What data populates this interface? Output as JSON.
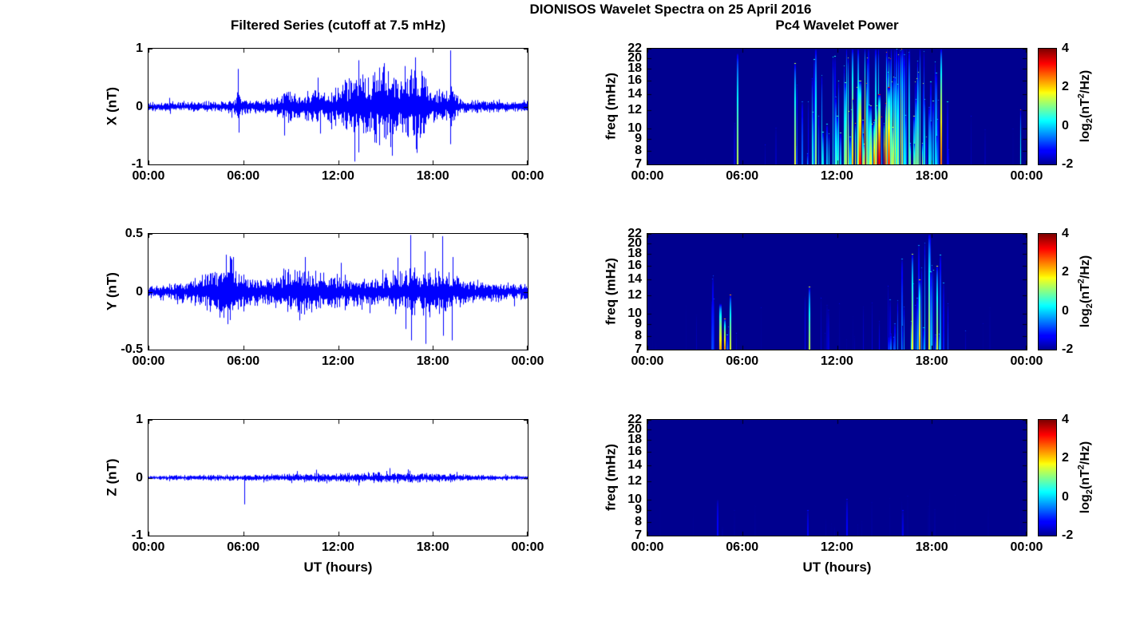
{
  "title": "DIONISOS Wavelet Spectra on 25 April 2016",
  "left_title": "Filtered Series (cutoff at 7.5 mHz)",
  "right_title": "Pc4 Wavelet Power",
  "xlabel": "UT (hours)",
  "x_ticks": [
    "00:00",
    "06:00",
    "12:00",
    "18:00",
    "00:00"
  ],
  "colors": {
    "line": "#0000ff",
    "background": "#ffffff",
    "spec_background": "#00008f"
  },
  "colorbar": {
    "label": {
      "pre": "log",
      "sub": "2",
      "mid": "(nT",
      "sup": "2",
      "post": "/Hz)"
    },
    "clim": [
      -2,
      4
    ],
    "tick_labels": [
      "4",
      "2",
      "0",
      "-2"
    ],
    "tick_values": [
      4,
      2,
      0,
      -2
    ]
  },
  "chart_data": [
    {
      "id": "series-x",
      "type": "line",
      "ylabel": "X (nT)",
      "xlabel": "UT (hours)",
      "x_range_hours": [
        0,
        24
      ],
      "ylim": [
        -1,
        1
      ],
      "ytick_labels": [
        "1",
        "0",
        "-1"
      ],
      "ytick_values": [
        1,
        0,
        -1
      ],
      "seed": 11,
      "envelope": [
        [
          0,
          0.06
        ],
        [
          1,
          0.055
        ],
        [
          2,
          0.06
        ],
        [
          3,
          0.06
        ],
        [
          4,
          0.065
        ],
        [
          5,
          0.07
        ],
        [
          5.5,
          0.12
        ],
        [
          5.7,
          0.28
        ],
        [
          5.9,
          0.12
        ],
        [
          6.5,
          0.08
        ],
        [
          7.5,
          0.09
        ],
        [
          8,
          0.12
        ],
        [
          8.6,
          0.22
        ],
        [
          9,
          0.16
        ],
        [
          9.5,
          0.14
        ],
        [
          10,
          0.18
        ],
        [
          10.5,
          0.22
        ],
        [
          11,
          0.18
        ],
        [
          11.5,
          0.2
        ],
        [
          12,
          0.22
        ],
        [
          12.5,
          0.3
        ],
        [
          13,
          0.42
        ],
        [
          13.3,
          0.5
        ],
        [
          13.6,
          0.35
        ],
        [
          14,
          0.33
        ],
        [
          14.5,
          0.42
        ],
        [
          15,
          0.45
        ],
        [
          15.5,
          0.4
        ],
        [
          16,
          0.35
        ],
        [
          16.5,
          0.42
        ],
        [
          17,
          0.38
        ],
        [
          17.3,
          0.45
        ],
        [
          17.6,
          0.3
        ],
        [
          18,
          0.22
        ],
        [
          18.5,
          0.2
        ],
        [
          19,
          0.18
        ],
        [
          19.2,
          0.3
        ],
        [
          19.5,
          0.12
        ],
        [
          20,
          0.09
        ],
        [
          21,
          0.07
        ],
        [
          22,
          0.08
        ],
        [
          23,
          0.06
        ],
        [
          24,
          0.06
        ]
      ],
      "spikes": [
        {
          "t": 5.68,
          "amp": 0.65
        },
        {
          "t": 5.72,
          "amp": -0.45
        },
        {
          "t": 8.6,
          "amp": -0.5
        },
        {
          "t": 10.7,
          "amp": 0.5
        },
        {
          "t": 13.05,
          "amp": -0.95
        },
        {
          "t": 13.3,
          "amp": 0.8
        },
        {
          "t": 14.9,
          "amp": 0.75
        },
        {
          "t": 15.3,
          "amp": -0.7
        },
        {
          "t": 16.2,
          "amp": 0.7
        },
        {
          "t": 16.9,
          "amp": 0.85
        },
        {
          "t": 17.0,
          "amp": -0.8
        },
        {
          "t": 19.1,
          "amp": 0.97
        },
        {
          "t": 19.12,
          "amp": -0.65
        }
      ]
    },
    {
      "id": "series-y",
      "type": "line",
      "ylabel": "Y (nT)",
      "xlabel": "UT (hours)",
      "x_range_hours": [
        0,
        24
      ],
      "ylim": [
        -0.5,
        0.5
      ],
      "ytick_labels": [
        "0.5",
        "0",
        "-0.5"
      ],
      "ytick_values": [
        0.5,
        0,
        -0.5
      ],
      "seed": 12,
      "envelope": [
        [
          0,
          0.045
        ],
        [
          1,
          0.05
        ],
        [
          2,
          0.06
        ],
        [
          3,
          0.08
        ],
        [
          3.5,
          0.1
        ],
        [
          4,
          0.13
        ],
        [
          4.5,
          0.16
        ],
        [
          5,
          0.17
        ],
        [
          5.3,
          0.2
        ],
        [
          5.6,
          0.15
        ],
        [
          6,
          0.12
        ],
        [
          6.5,
          0.09
        ],
        [
          7,
          0.08
        ],
        [
          7.5,
          0.09
        ],
        [
          8,
          0.11
        ],
        [
          8.5,
          0.12
        ],
        [
          9,
          0.13
        ],
        [
          9.5,
          0.14
        ],
        [
          10,
          0.13
        ],
        [
          10.5,
          0.12
        ],
        [
          11,
          0.11
        ],
        [
          11.5,
          0.1
        ],
        [
          12,
          0.11
        ],
        [
          12.5,
          0.09
        ],
        [
          13,
          0.08
        ],
        [
          13.5,
          0.08
        ],
        [
          14,
          0.09
        ],
        [
          14.5,
          0.09
        ],
        [
          15,
          0.1
        ],
        [
          15.5,
          0.11
        ],
        [
          16,
          0.12
        ],
        [
          16.5,
          0.14
        ],
        [
          17,
          0.13
        ],
        [
          17.5,
          0.14
        ],
        [
          18,
          0.13
        ],
        [
          18.5,
          0.14
        ],
        [
          19,
          0.12
        ],
        [
          19.5,
          0.11
        ],
        [
          20,
          0.08
        ],
        [
          20.5,
          0.07
        ],
        [
          21,
          0.06
        ],
        [
          22,
          0.06
        ],
        [
          23,
          0.05
        ],
        [
          24,
          0.05
        ]
      ],
      "spikes": [
        {
          "t": 4.9,
          "amp": 0.32
        },
        {
          "t": 5.0,
          "amp": -0.28
        },
        {
          "t": 5.35,
          "amp": 0.3
        },
        {
          "t": 9.9,
          "amp": 0.3
        },
        {
          "t": 12.2,
          "amp": 0.25
        },
        {
          "t": 16.55,
          "amp": 0.49
        },
        {
          "t": 16.6,
          "amp": -0.42
        },
        {
          "t": 17.5,
          "amp": 0.35
        },
        {
          "t": 17.55,
          "amp": -0.45
        },
        {
          "t": 18.6,
          "amp": 0.48
        },
        {
          "t": 18.65,
          "amp": -0.38
        },
        {
          "t": 19.2,
          "amp": -0.42
        },
        {
          "t": 19.25,
          "amp": 0.3
        }
      ]
    },
    {
      "id": "series-z",
      "type": "line",
      "ylabel": "Z (nT)",
      "xlabel": "UT (hours)",
      "x_range_hours": [
        0,
        24
      ],
      "ylim": [
        -1,
        1
      ],
      "ytick_labels": [
        "1",
        "0",
        "-1"
      ],
      "ytick_values": [
        1,
        0,
        -1
      ],
      "seed": 13,
      "envelope": [
        [
          0,
          0.025
        ],
        [
          2,
          0.03
        ],
        [
          4,
          0.035
        ],
        [
          6,
          0.035
        ],
        [
          8,
          0.04
        ],
        [
          10,
          0.05
        ],
        [
          12,
          0.055
        ],
        [
          14,
          0.06
        ],
        [
          15,
          0.065
        ],
        [
          16,
          0.06
        ],
        [
          17,
          0.055
        ],
        [
          18,
          0.05
        ],
        [
          19,
          0.05
        ],
        [
          20,
          0.04
        ],
        [
          21,
          0.035
        ],
        [
          22,
          0.03
        ],
        [
          23,
          0.03
        ],
        [
          24,
          0.025
        ]
      ],
      "spikes": [
        {
          "t": 6.05,
          "amp": -0.46
        },
        {
          "t": 16.5,
          "amp": 0.12
        },
        {
          "t": 19.5,
          "amp": 0.1
        }
      ]
    },
    {
      "id": "spec-x",
      "type": "heatmap",
      "ylabel": "freq (mHz)",
      "xlabel": "UT (hours)",
      "x_range_hours": [
        0,
        24
      ],
      "flim": [
        7,
        22
      ],
      "ytick_labels": [
        "22",
        "20",
        "18",
        "16",
        "14",
        "12",
        "10",
        "9",
        "8",
        "7"
      ],
      "ytick_values": [
        22,
        20,
        18,
        16,
        14,
        12,
        10,
        9,
        8,
        7
      ],
      "clim": [
        -2,
        4
      ],
      "max_power": 3.4,
      "seed": 21,
      "activity": [
        [
          0,
          0.01
        ],
        [
          2,
          0.01
        ],
        [
          3,
          0.02
        ],
        [
          4,
          0.03
        ],
        [
          5,
          0.04
        ],
        [
          5.5,
          0.2
        ],
        [
          5.7,
          0.35
        ],
        [
          5.9,
          0.1
        ],
        [
          6.5,
          0.04
        ],
        [
          7,
          0.05
        ],
        [
          7.5,
          0.06
        ],
        [
          8,
          0.1
        ],
        [
          8.5,
          0.2
        ],
        [
          9,
          0.25
        ],
        [
          9.5,
          0.3
        ],
        [
          10,
          0.4
        ],
        [
          10.5,
          0.5
        ],
        [
          11,
          0.45
        ],
        [
          11.5,
          0.5
        ],
        [
          12,
          0.55
        ],
        [
          12.5,
          0.65
        ],
        [
          13,
          0.8
        ],
        [
          13.5,
          0.9
        ],
        [
          14,
          0.92
        ],
        [
          14.5,
          0.95
        ],
        [
          15,
          0.95
        ],
        [
          15.5,
          0.9
        ],
        [
          16,
          0.8
        ],
        [
          16.5,
          0.75
        ],
        [
          17,
          0.7
        ],
        [
          17.5,
          0.6
        ],
        [
          18,
          0.5
        ],
        [
          18.5,
          0.45
        ],
        [
          19,
          0.25
        ],
        [
          19.5,
          0.12
        ],
        [
          20,
          0.06
        ],
        [
          20.5,
          0.05
        ],
        [
          21,
          0.06
        ],
        [
          21.5,
          0.08
        ],
        [
          22,
          0.07
        ],
        [
          22.5,
          0.05
        ],
        [
          23,
          0.03
        ],
        [
          24,
          0.01
        ]
      ],
      "events": [
        {
          "t": 5.65,
          "ftop": 21,
          "power": 1.4,
          "width": 2
        },
        {
          "t": 9.3,
          "ftop": 19,
          "power": 1.6,
          "width": 2
        },
        {
          "t": 10.6,
          "ftop": 22,
          "power": 1.2,
          "width": 2
        },
        {
          "t": 13.4,
          "ftop": 16,
          "power": 3.2,
          "width": 3
        },
        {
          "t": 14.6,
          "ftop": 14,
          "power": 3.4,
          "width": 3
        },
        {
          "t": 15.2,
          "ftop": 15,
          "power": 3.0,
          "width": 3
        },
        {
          "t": 18.55,
          "ftop": 22,
          "power": 2.6,
          "width": 2
        },
        {
          "t": 23.6,
          "ftop": 12,
          "power": 0.5,
          "width": 1
        }
      ]
    },
    {
      "id": "spec-y",
      "type": "heatmap",
      "ylabel": "freq (mHz)",
      "xlabel": "UT (hours)",
      "x_range_hours": [
        0,
        24
      ],
      "flim": [
        7,
        22
      ],
      "ytick_labels": [
        "22",
        "20",
        "18",
        "16",
        "14",
        "12",
        "10",
        "9",
        "8",
        "7"
      ],
      "ytick_values": [
        22,
        20,
        18,
        16,
        14,
        12,
        10,
        9,
        8,
        7
      ],
      "clim": [
        -2,
        4
      ],
      "max_power": 2.6,
      "seed": 22,
      "activity": [
        [
          0,
          0.01
        ],
        [
          1,
          0.02
        ],
        [
          2,
          0.02
        ],
        [
          3,
          0.05
        ],
        [
          3.5,
          0.1
        ],
        [
          4,
          0.25
        ],
        [
          4.5,
          0.4
        ],
        [
          5,
          0.45
        ],
        [
          5.3,
          0.35
        ],
        [
          5.7,
          0.2
        ],
        [
          6,
          0.1
        ],
        [
          6.5,
          0.04
        ],
        [
          7,
          0.03
        ],
        [
          8,
          0.04
        ],
        [
          9,
          0.06
        ],
        [
          9.8,
          0.15
        ],
        [
          10.2,
          0.25
        ],
        [
          10.6,
          0.15
        ],
        [
          11,
          0.12
        ],
        [
          11.5,
          0.1
        ],
        [
          12,
          0.06
        ],
        [
          12.5,
          0.05
        ],
        [
          13,
          0.06
        ],
        [
          13.5,
          0.08
        ],
        [
          14,
          0.12
        ],
        [
          14.5,
          0.2
        ],
        [
          15,
          0.3
        ],
        [
          15.5,
          0.4
        ],
        [
          16,
          0.5
        ],
        [
          16.5,
          0.55
        ],
        [
          17,
          0.6
        ],
        [
          17.5,
          0.65
        ],
        [
          18,
          0.6
        ],
        [
          18.5,
          0.5
        ],
        [
          19,
          0.35
        ],
        [
          19.5,
          0.25
        ],
        [
          20,
          0.1
        ],
        [
          20.5,
          0.05
        ],
        [
          21,
          0.03
        ],
        [
          22,
          0.04
        ],
        [
          23,
          0.02
        ],
        [
          24,
          0.01
        ]
      ],
      "events": [
        {
          "t": 4.55,
          "ftop": 11,
          "power": 2.2,
          "width": 3
        },
        {
          "t": 4.85,
          "ftop": 9.5,
          "power": 2.4,
          "width": 2
        },
        {
          "t": 5.2,
          "ftop": 12,
          "power": 1.6,
          "width": 2
        },
        {
          "t": 10.2,
          "ftop": 13,
          "power": 1.4,
          "width": 2
        },
        {
          "t": 16.7,
          "ftop": 18,
          "power": 1.8,
          "width": 2
        },
        {
          "t": 17.2,
          "ftop": 14,
          "power": 2.2,
          "width": 2
        },
        {
          "t": 17.8,
          "ftop": 22,
          "power": 1.6,
          "width": 2
        },
        {
          "t": 18.3,
          "ftop": 16,
          "power": 1.5,
          "width": 2
        }
      ]
    },
    {
      "id": "spec-z",
      "type": "heatmap",
      "ylabel": "freq (mHz)",
      "xlabel": "UT (hours)",
      "x_range_hours": [
        0,
        24
      ],
      "flim": [
        7,
        22
      ],
      "ytick_labels": [
        "22",
        "20",
        "18",
        "16",
        "14",
        "12",
        "10",
        "9",
        "8",
        "7"
      ],
      "ytick_values": [
        22,
        20,
        18,
        16,
        14,
        12,
        10,
        9,
        8,
        7
      ],
      "clim": [
        -2,
        4
      ],
      "max_power": 0.9,
      "seed": 23,
      "activity": [
        [
          0,
          0.01
        ],
        [
          2,
          0.02
        ],
        [
          4,
          0.04
        ],
        [
          4.5,
          0.08
        ],
        [
          5,
          0.04
        ],
        [
          6,
          0.03
        ],
        [
          7,
          0.02
        ],
        [
          8,
          0.03
        ],
        [
          9,
          0.03
        ],
        [
          10,
          0.06
        ],
        [
          10.5,
          0.04
        ],
        [
          11,
          0.03
        ],
        [
          12,
          0.05
        ],
        [
          12.5,
          0.07
        ],
        [
          13,
          0.04
        ],
        [
          14,
          0.04
        ],
        [
          15,
          0.05
        ],
        [
          16,
          0.07
        ],
        [
          16.5,
          0.05
        ],
        [
          17,
          0.04
        ],
        [
          18,
          0.04
        ],
        [
          19,
          0.03
        ],
        [
          20,
          0.02
        ],
        [
          21,
          0.02
        ],
        [
          22,
          0.02
        ],
        [
          23,
          0.01
        ],
        [
          24,
          0.01
        ]
      ],
      "events": [
        {
          "t": 4.4,
          "ftop": 10,
          "power": -1.2,
          "width": 2
        },
        {
          "t": 10.1,
          "ftop": 9,
          "power": -1.35,
          "width": 2
        },
        {
          "t": 12.6,
          "ftop": 10,
          "power": -1.25,
          "width": 2
        },
        {
          "t": 16.1,
          "ftop": 9,
          "power": -1.4,
          "width": 2
        }
      ]
    }
  ]
}
